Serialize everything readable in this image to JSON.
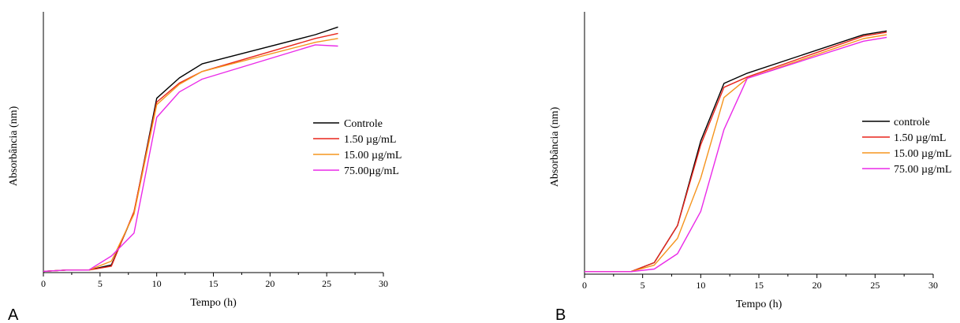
{
  "chart_data": [
    {
      "type": "line",
      "panel_label": "A",
      "xlabel": "Tempo (h)",
      "ylabel": "Absorbância (nm)",
      "xlim": [
        0,
        30
      ],
      "xticks": [
        "0",
        "5",
        "10",
        "15",
        "20",
        "25",
        "30"
      ],
      "ylim": [
        0,
        1
      ],
      "yticks_shown": false,
      "grid": false,
      "legend_position": "right",
      "series": [
        {
          "name": "Controle",
          "color": "#000000",
          "x": [
            0,
            2,
            4,
            6,
            8,
            10,
            12,
            14,
            24,
            26
          ],
          "y": [
            0.005,
            0.01,
            0.01,
            0.03,
            0.235,
            0.685,
            0.765,
            0.82,
            0.935,
            0.965
          ]
        },
        {
          "name": "1.50 µg/mL",
          "color": "#e8251c",
          "x": [
            0,
            2,
            4,
            6,
            8,
            10,
            12,
            14,
            24,
            26
          ],
          "y": [
            0.005,
            0.01,
            0.01,
            0.025,
            0.24,
            0.67,
            0.745,
            0.79,
            0.92,
            0.94
          ]
        },
        {
          "name": "15.00 µg/mL",
          "color": "#f5951e",
          "x": [
            0,
            2,
            4,
            6,
            8,
            10,
            12,
            14,
            24,
            26
          ],
          "y": [
            0.005,
            0.01,
            0.01,
            0.045,
            0.23,
            0.66,
            0.74,
            0.79,
            0.905,
            0.92
          ]
        },
        {
          "name": "75.00µg/mL",
          "color": "#ea2ae8",
          "x": [
            0,
            2,
            4,
            6,
            8,
            10,
            12,
            14,
            24,
            26
          ],
          "y": [
            0.005,
            0.01,
            0.01,
            0.065,
            0.155,
            0.61,
            0.71,
            0.76,
            0.895,
            0.89
          ]
        }
      ]
    },
    {
      "type": "line",
      "panel_label": "B",
      "xlabel": "Tempo (h)",
      "ylabel": "Absorbância (nm)",
      "xlim": [
        0,
        30
      ],
      "xticks": [
        "0",
        "5",
        "10",
        "15",
        "20",
        "25",
        "30"
      ],
      "ylim": [
        0,
        1
      ],
      "yticks_shown": false,
      "grid": false,
      "legend_position": "right",
      "series": [
        {
          "name": "controle",
          "color": "#000000",
          "x": [
            0,
            2,
            4,
            6,
            8,
            10,
            12,
            14,
            24,
            26
          ],
          "y": [
            0.01,
            0.01,
            0.01,
            0.045,
            0.19,
            0.52,
            0.745,
            0.785,
            0.935,
            0.95
          ]
        },
        {
          "name": "1.50 µg/mL",
          "color": "#e8251c",
          "x": [
            0,
            2,
            4,
            6,
            8,
            10,
            12,
            14,
            24,
            26
          ],
          "y": [
            0.01,
            0.01,
            0.01,
            0.045,
            0.19,
            0.505,
            0.73,
            0.77,
            0.93,
            0.945
          ]
        },
        {
          "name": "15.00 µg/mL",
          "color": "#f5951e",
          "x": [
            0,
            2,
            4,
            6,
            8,
            10,
            12,
            14,
            24,
            26
          ],
          "y": [
            0.01,
            0.01,
            0.01,
            0.035,
            0.14,
            0.375,
            0.69,
            0.765,
            0.92,
            0.935
          ]
        },
        {
          "name": "75.00 µg/mL",
          "color": "#ea2ae8",
          "x": [
            0,
            2,
            4,
            6,
            8,
            10,
            12,
            14,
            24,
            26
          ],
          "y": [
            0.01,
            0.01,
            0.01,
            0.02,
            0.08,
            0.245,
            0.565,
            0.765,
            0.91,
            0.925
          ]
        }
      ]
    }
  ]
}
